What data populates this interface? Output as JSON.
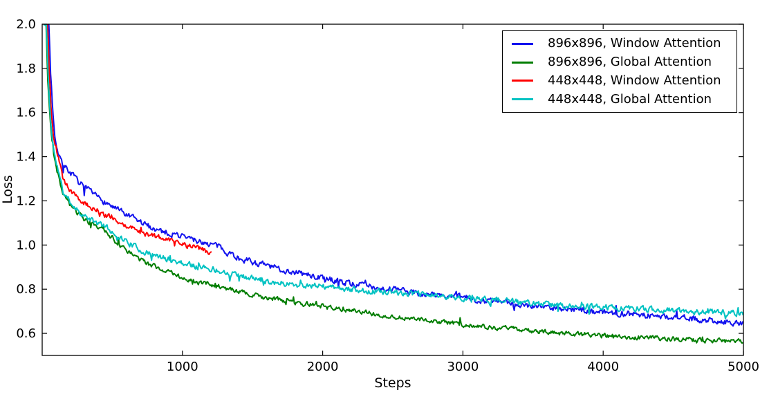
{
  "figure": {
    "background": "#ffffff",
    "axis_color": "#000000",
    "tick_direction": "in"
  },
  "chart_data": {
    "type": "line",
    "title": "",
    "xlabel": "Steps",
    "ylabel": "Loss",
    "xlim": [
      0,
      5000
    ],
    "ylim": [
      0.5,
      2.0
    ],
    "x_ticks": [
      1000,
      2000,
      3000,
      4000,
      5000
    ],
    "y_ticks": [
      0.6,
      0.8,
      1.0,
      1.2,
      1.4,
      1.6,
      1.8,
      2.0
    ],
    "grid": false,
    "legend": {
      "position": "upper right",
      "border_color": "#000000",
      "background": "#ffffff"
    },
    "series": [
      {
        "name": "896x896, Window Attention",
        "color": "#1212ee",
        "seed": 7,
        "noise": 0.013,
        "points": [
          [
            30,
            2.6
          ],
          [
            45,
            2.05
          ],
          [
            60,
            1.78
          ],
          [
            75,
            1.62
          ],
          [
            90,
            1.5
          ],
          [
            110,
            1.43
          ],
          [
            148,
            1.36
          ],
          [
            200,
            1.33
          ],
          [
            250,
            1.29
          ],
          [
            300,
            1.26
          ],
          [
            370,
            1.225
          ],
          [
            440,
            1.2
          ],
          [
            520,
            1.165
          ],
          [
            600,
            1.135
          ],
          [
            680,
            1.11
          ],
          [
            740,
            1.09
          ],
          [
            820,
            1.07
          ],
          [
            900,
            1.055
          ],
          [
            1000,
            1.04
          ],
          [
            1100,
            1.02
          ],
          [
            1230,
            1.0
          ],
          [
            1320,
            0.97
          ],
          [
            1425,
            0.935
          ],
          [
            1550,
            0.915
          ],
          [
            1700,
            0.89
          ],
          [
            1850,
            0.87
          ],
          [
            2000,
            0.85
          ],
          [
            2165,
            0.83
          ],
          [
            2350,
            0.812
          ],
          [
            2500,
            0.798
          ],
          [
            2700,
            0.78
          ],
          [
            2900,
            0.768
          ],
          [
            3050,
            0.757
          ],
          [
            3200,
            0.747
          ],
          [
            3400,
            0.733
          ],
          [
            3650,
            0.716
          ],
          [
            3800,
            0.707
          ],
          [
            4000,
            0.697
          ],
          [
            4200,
            0.687
          ],
          [
            4400,
            0.677
          ],
          [
            4600,
            0.668
          ],
          [
            4800,
            0.657
          ],
          [
            5000,
            0.648
          ]
        ]
      },
      {
        "name": "896x896, Global Attention",
        "color": "#007d00",
        "seed": 3,
        "noise": 0.01,
        "points": [
          [
            10,
            2.6
          ],
          [
            25,
            2.05
          ],
          [
            40,
            1.75
          ],
          [
            55,
            1.58
          ],
          [
            72,
            1.46
          ],
          [
            90,
            1.38
          ],
          [
            110,
            1.33
          ],
          [
            148,
            1.23
          ],
          [
            200,
            1.18
          ],
          [
            250,
            1.145
          ],
          [
            300,
            1.115
          ],
          [
            370,
            1.092
          ],
          [
            440,
            1.072
          ],
          [
            520,
            1.02
          ],
          [
            600,
            0.975
          ],
          [
            680,
            0.94
          ],
          [
            740,
            0.92
          ],
          [
            820,
            0.898
          ],
          [
            900,
            0.876
          ],
          [
            1000,
            0.852
          ],
          [
            1100,
            0.836
          ],
          [
            1230,
            0.816
          ],
          [
            1320,
            0.802
          ],
          [
            1425,
            0.786
          ],
          [
            1550,
            0.768
          ],
          [
            1700,
            0.75
          ],
          [
            1850,
            0.736
          ],
          [
            2000,
            0.722
          ],
          [
            2165,
            0.706
          ],
          [
            2350,
            0.69
          ],
          [
            2500,
            0.676
          ],
          [
            2700,
            0.66
          ],
          [
            2900,
            0.647
          ],
          [
            3050,
            0.637
          ],
          [
            3200,
            0.628
          ],
          [
            3400,
            0.617
          ],
          [
            3650,
            0.603
          ],
          [
            3800,
            0.597
          ],
          [
            4000,
            0.59
          ],
          [
            4200,
            0.584
          ],
          [
            4400,
            0.578
          ],
          [
            4600,
            0.572
          ],
          [
            4800,
            0.566
          ],
          [
            5000,
            0.56
          ]
        ]
      },
      {
        "name": "448x448, Window Attention",
        "color": "#ff0000",
        "seed": 5,
        "noise": 0.011,
        "points": [
          [
            20,
            2.6
          ],
          [
            35,
            2.1
          ],
          [
            50,
            1.78
          ],
          [
            65,
            1.6
          ],
          [
            80,
            1.5
          ],
          [
            110,
            1.41
          ],
          [
            148,
            1.3
          ],
          [
            200,
            1.25
          ],
          [
            250,
            1.215
          ],
          [
            300,
            1.19
          ],
          [
            370,
            1.165
          ],
          [
            440,
            1.14
          ],
          [
            520,
            1.115
          ],
          [
            600,
            1.09
          ],
          [
            680,
            1.068
          ],
          [
            740,
            1.05
          ],
          [
            820,
            1.038
          ],
          [
            900,
            1.025
          ],
          [
            1000,
            1.005
          ],
          [
            1100,
            0.988
          ],
          [
            1160,
            0.975
          ],
          [
            1210,
            0.958
          ]
        ]
      },
      {
        "name": "448x448, Global Attention",
        "color": "#00c2c2",
        "seed": 11,
        "noise": 0.012,
        "points": [
          [
            12,
            2.6
          ],
          [
            28,
            2.05
          ],
          [
            42,
            1.78
          ],
          [
            56,
            1.6
          ],
          [
            72,
            1.48
          ],
          [
            90,
            1.4
          ],
          [
            110,
            1.35
          ],
          [
            148,
            1.24
          ],
          [
            200,
            1.195
          ],
          [
            250,
            1.16
          ],
          [
            300,
            1.13
          ],
          [
            370,
            1.105
          ],
          [
            440,
            1.088
          ],
          [
            520,
            1.05
          ],
          [
            600,
            1.018
          ],
          [
            680,
            0.985
          ],
          [
            740,
            0.965
          ],
          [
            820,
            0.948
          ],
          [
            900,
            0.935
          ],
          [
            1000,
            0.92
          ],
          [
            1100,
            0.905
          ],
          [
            1230,
            0.89
          ],
          [
            1320,
            0.876
          ],
          [
            1425,
            0.858
          ],
          [
            1550,
            0.842
          ],
          [
            1700,
            0.828
          ],
          [
            1850,
            0.818
          ],
          [
            2000,
            0.812
          ],
          [
            2165,
            0.8
          ],
          [
            2350,
            0.792
          ],
          [
            2500,
            0.786
          ],
          [
            2700,
            0.776
          ],
          [
            2900,
            0.766
          ],
          [
            3050,
            0.758
          ],
          [
            3200,
            0.752
          ],
          [
            3400,
            0.742
          ],
          [
            3650,
            0.728
          ],
          [
            3800,
            0.723
          ],
          [
            4000,
            0.718
          ],
          [
            4200,
            0.712
          ],
          [
            4400,
            0.707
          ],
          [
            4600,
            0.701
          ],
          [
            4800,
            0.695
          ],
          [
            5000,
            0.69
          ]
        ]
      }
    ]
  }
}
